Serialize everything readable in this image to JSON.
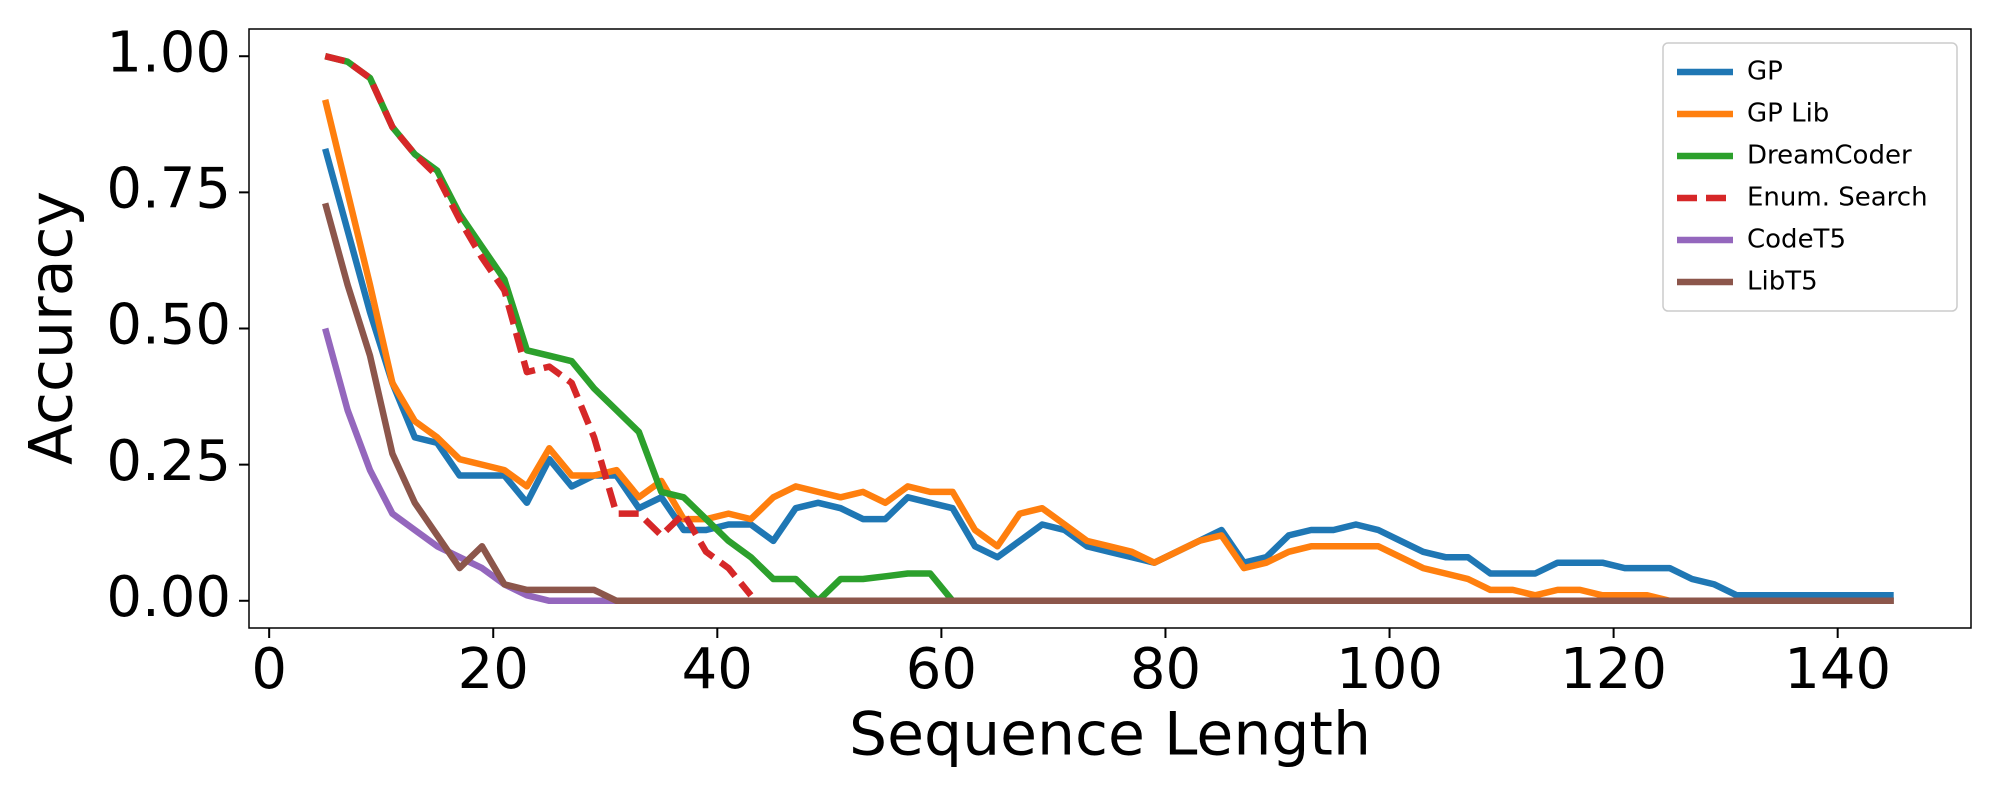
{
  "chart_data": {
    "type": "line",
    "xlabel": "Sequence Length",
    "ylabel": "Accuracy",
    "x": [
      5,
      7,
      9,
      11,
      13,
      15,
      17,
      19,
      21,
      23,
      25,
      27,
      29,
      31,
      33,
      35,
      37,
      39,
      41,
      43,
      45,
      47,
      49,
      51,
      53,
      55,
      57,
      59,
      61,
      63,
      65,
      67,
      69,
      71,
      73,
      75,
      77,
      79,
      81,
      83,
      85,
      87,
      89,
      91,
      93,
      95,
      97,
      99,
      101,
      103,
      105,
      107,
      109,
      111,
      113,
      115,
      117,
      119,
      121,
      123,
      125,
      127,
      129,
      131,
      133,
      135,
      137,
      139,
      141,
      143,
      145
    ],
    "series": [
      {
        "name": "GP",
        "color": "#1f77b4",
        "dash": false,
        "values": [
          0.83,
          0.68,
          0.53,
          0.4,
          0.3,
          0.29,
          0.23,
          0.23,
          0.23,
          0.18,
          0.26,
          0.21,
          0.23,
          0.23,
          0.17,
          0.19,
          0.13,
          0.13,
          0.14,
          0.14,
          0.11,
          0.17,
          0.18,
          0.17,
          0.15,
          0.15,
          0.19,
          0.18,
          0.17,
          0.1,
          0.08,
          0.11,
          0.14,
          0.13,
          0.1,
          0.09,
          0.08,
          0.07,
          0.09,
          0.11,
          0.13,
          0.07,
          0.08,
          0.12,
          0.13,
          0.13,
          0.14,
          0.13,
          0.11,
          0.09,
          0.08,
          0.08,
          0.05,
          0.05,
          0.05,
          0.07,
          0.07,
          0.07,
          0.06,
          0.06,
          0.06,
          0.04,
          0.03,
          0.01,
          0.01,
          0.01,
          0.01,
          0.01,
          0.01,
          0.01,
          0.01
        ]
      },
      {
        "name": "GP Lib",
        "color": "#ff7f0e",
        "dash": false,
        "values": [
          0.92,
          0.75,
          0.58,
          0.4,
          0.33,
          0.3,
          0.26,
          0.25,
          0.24,
          0.21,
          0.28,
          0.23,
          0.23,
          0.24,
          0.19,
          0.22,
          0.15,
          0.15,
          0.16,
          0.15,
          0.19,
          0.21,
          0.2,
          0.19,
          0.2,
          0.18,
          0.21,
          0.2,
          0.2,
          0.13,
          0.1,
          0.16,
          0.17,
          0.14,
          0.11,
          0.1,
          0.09,
          0.07,
          0.09,
          0.11,
          0.12,
          0.06,
          0.07,
          0.09,
          0.1,
          0.1,
          0.1,
          0.1,
          0.08,
          0.06,
          0.05,
          0.04,
          0.02,
          0.02,
          0.01,
          0.02,
          0.02,
          0.01,
          0.01,
          0.01,
          0,
          0,
          0,
          0,
          0,
          0,
          0,
          0,
          0,
          0,
          0
        ]
      },
      {
        "name": "DreamCoder",
        "color": "#2ca02c",
        "dash": false,
        "values": [
          1.0,
          0.99,
          0.96,
          0.87,
          0.82,
          0.79,
          0.71,
          0.65,
          0.59,
          0.46,
          0.45,
          0.44,
          0.39,
          0.35,
          0.31,
          0.2,
          0.19,
          0.15,
          0.11,
          0.08,
          0.04,
          0.04,
          0,
          0.04,
          0.04,
          0.045,
          0.05,
          0.05,
          0,
          0,
          0,
          0,
          0,
          0,
          0,
          0,
          0,
          0,
          0,
          0,
          0,
          0,
          0,
          0,
          0,
          0,
          0,
          0,
          0,
          0,
          0,
          0,
          0,
          0,
          0,
          0,
          0,
          0,
          0,
          0,
          0,
          0,
          0,
          0,
          0,
          0,
          0,
          0,
          0,
          0,
          0
        ]
      },
      {
        "name": "Enum. Search",
        "color": "#d62728",
        "dash": true,
        "values": [
          1.0,
          0.99,
          0.96,
          0.87,
          0.82,
          0.78,
          0.7,
          0.63,
          0.57,
          0.42,
          0.43,
          0.4,
          0.3,
          0.16,
          0.16,
          0.12,
          0.16,
          0.09,
          0.06,
          0.01,
          null,
          null,
          null,
          null,
          null,
          null,
          null,
          null,
          null,
          null,
          null,
          null,
          null,
          null,
          null,
          null,
          null,
          null,
          null,
          null,
          null,
          null,
          null,
          null,
          null,
          null,
          null,
          null,
          null,
          null,
          null,
          null,
          null,
          null,
          null,
          null,
          null,
          null,
          null,
          null,
          null,
          null,
          null,
          null,
          null,
          null,
          null,
          null,
          null,
          null,
          null
        ]
      },
      {
        "name": "CodeT5",
        "color": "#9467bd",
        "dash": false,
        "values": [
          0.5,
          0.35,
          0.24,
          0.16,
          0.13,
          0.1,
          0.08,
          0.06,
          0.03,
          0.01,
          0,
          0,
          0,
          0,
          0,
          0,
          0,
          0,
          0,
          0,
          0,
          0,
          0,
          0,
          0,
          0,
          0,
          0,
          0,
          0,
          0,
          0,
          0,
          0,
          0,
          0,
          0,
          0,
          0,
          0,
          0,
          0,
          0,
          0,
          0,
          0,
          0,
          0,
          0,
          0,
          0,
          0,
          0,
          0,
          0,
          0,
          0,
          0,
          0,
          0,
          0,
          0,
          0,
          0,
          0,
          0,
          0,
          0,
          0,
          0,
          0
        ]
      },
      {
        "name": "LibT5",
        "color": "#8c564b",
        "dash": false,
        "values": [
          0.73,
          0.58,
          0.45,
          0.27,
          0.18,
          0.12,
          0.06,
          0.1,
          0.03,
          0.02,
          0.02,
          0.02,
          0.02,
          0,
          0,
          0,
          0,
          0,
          0,
          0,
          0,
          0,
          0,
          0,
          0,
          0,
          0,
          0,
          0,
          0,
          0,
          0,
          0,
          0,
          0,
          0,
          0,
          0,
          0,
          0,
          0,
          0,
          0,
          0,
          0,
          0,
          0,
          0,
          0,
          0,
          0,
          0,
          0,
          0,
          0,
          0,
          0,
          0,
          0,
          0,
          0,
          0,
          0,
          0,
          0,
          0,
          0,
          0,
          0,
          0,
          0
        ]
      }
    ],
    "xlim": [
      -1.8,
      151.9
    ],
    "ylim": [
      -0.05,
      1.05
    ],
    "xticks": [
      0,
      20,
      40,
      60,
      80,
      100,
      120,
      140
    ],
    "yticks": [
      {
        "value": 0,
        "label": "0.00"
      },
      {
        "value": 0.25,
        "label": "0.25"
      },
      {
        "value": 0.5,
        "label": "0.50"
      },
      {
        "value": 0.75,
        "label": "0.75"
      },
      {
        "value": 1,
        "label": "1.00"
      }
    ],
    "grid": false,
    "legend": "upper right"
  }
}
